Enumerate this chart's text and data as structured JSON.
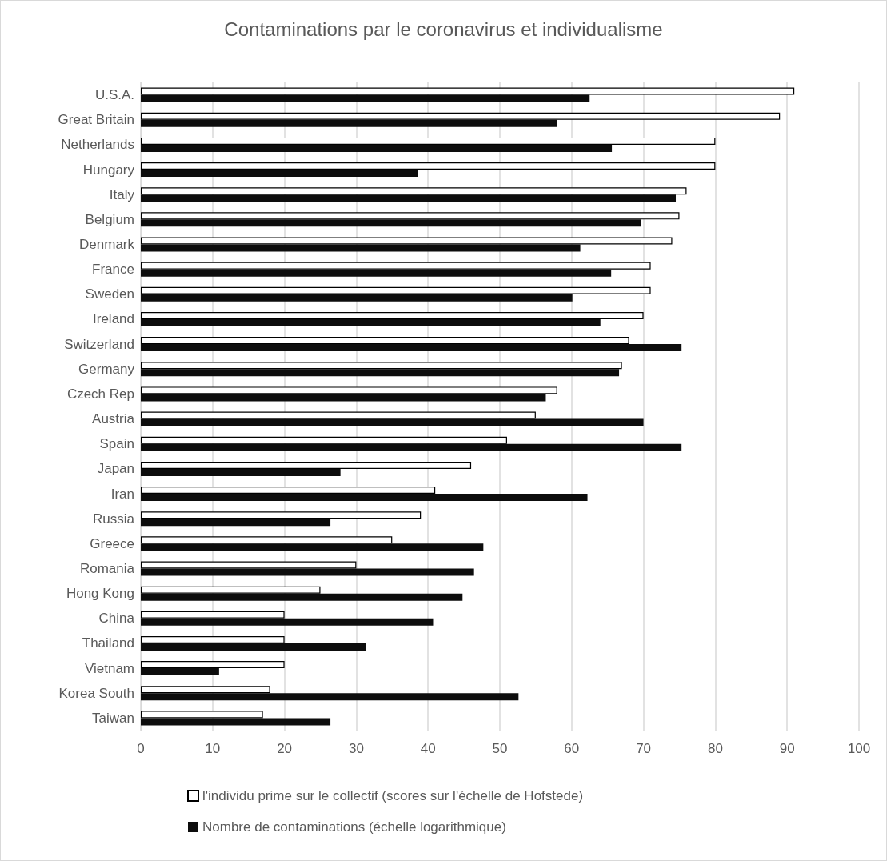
{
  "chart_data": {
    "type": "bar",
    "orientation": "horizontal",
    "title": "Contaminations par le coronavirus et individualisme",
    "categories": [
      "U.S.A.",
      "Great Britain",
      "Netherlands",
      "Hungary",
      "Italy",
      "Belgium",
      "Denmark",
      "France",
      "Sweden",
      "Ireland",
      "Switzerland",
      "Germany",
      "Czech Rep",
      "Austria",
      "Spain",
      "Japan",
      "Iran",
      "Russia",
      "Greece",
      "Romania",
      "Hong Kong",
      "China",
      "Thailand",
      "Vietnam",
      "Korea South",
      "Taiwan"
    ],
    "series": [
      {
        "name": "l'individu prime sur le collectif (scores sur l'échelle de Hofstede)",
        "color": "#ffffff",
        "values": [
          91,
          89,
          80,
          80,
          76,
          75,
          74,
          71,
          71,
          70,
          68,
          67,
          58,
          55,
          51,
          46,
          41,
          39,
          35,
          30,
          25,
          20,
          20,
          20,
          18,
          17
        ]
      },
      {
        "name": "Nombre de contaminations (échelle logarithmique)",
        "color": "#0d0d0d",
        "values": [
          62.5,
          58,
          65.6,
          38.6,
          74.5,
          69.6,
          61.2,
          65.5,
          60.1,
          64,
          75.3,
          66.6,
          56.4,
          70,
          75.3,
          27.8,
          62.2,
          26.4,
          47.7,
          46.4,
          44.8,
          40.7,
          31.4,
          10.9,
          52.6,
          26.4
        ]
      }
    ],
    "xlim": [
      0,
      100
    ],
    "xticks": [
      0,
      10,
      20,
      30,
      40,
      50,
      60,
      70,
      80,
      90,
      100
    ],
    "grid": "x",
    "legend": "bottom"
  }
}
